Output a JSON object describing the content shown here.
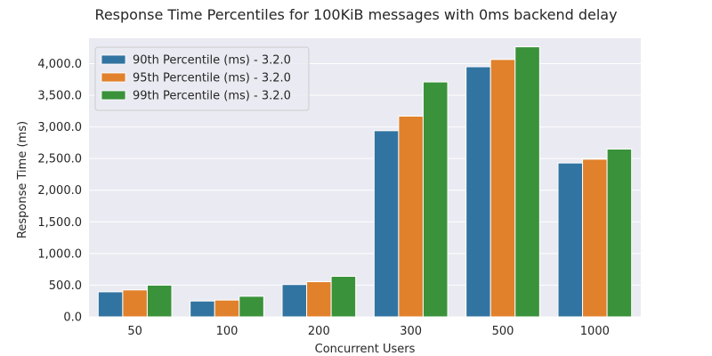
{
  "chart_data": {
    "type": "bar",
    "title": "Response Time Percentiles for 100KiB messages with 0ms backend delay",
    "xlabel": "Concurrent Users",
    "ylabel": "Response Time (ms)",
    "categories": [
      "50",
      "100",
      "200",
      "300",
      "500",
      "1000"
    ],
    "ylim": [
      0,
      4400
    ],
    "yticks": [
      0,
      500,
      1000,
      1500,
      2000,
      2500,
      3000,
      3500,
      4000
    ],
    "ytick_labels": [
      "0.0",
      "500.0",
      "1,000.0",
      "1,500.0",
      "2,000.0",
      "2,500.0",
      "3,000.0",
      "3,500.0",
      "4,000.0"
    ],
    "grid": true,
    "legend_position": "top-left",
    "series": [
      {
        "name": "90th Percentile (ms) - 3.2.0",
        "color": "#3274a1",
        "values": [
          395,
          250,
          510,
          2940,
          3950,
          2430
        ]
      },
      {
        "name": "95th Percentile (ms) - 3.2.0",
        "color": "#e1812c",
        "values": [
          425,
          265,
          555,
          3170,
          4065,
          2490
        ]
      },
      {
        "name": "99th Percentile (ms) - 3.2.0",
        "color": "#3a923a",
        "values": [
          500,
          325,
          640,
          3710,
          4265,
          2650
        ]
      }
    ]
  }
}
